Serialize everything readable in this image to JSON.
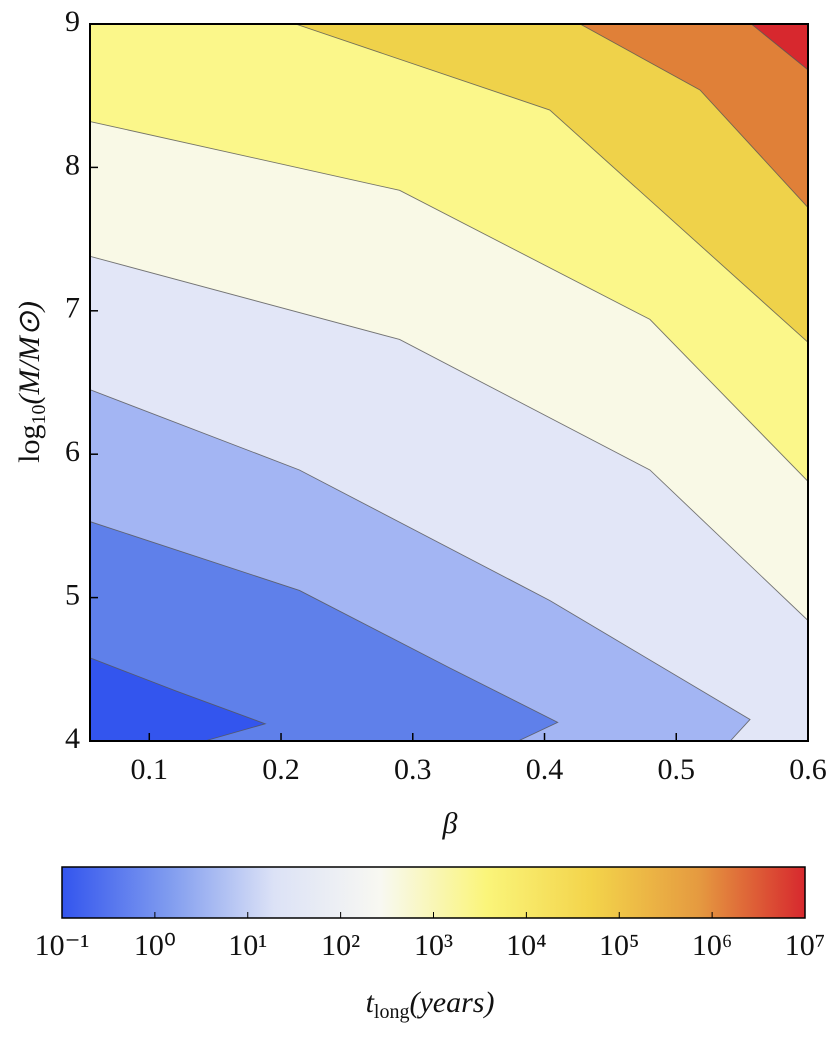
{
  "chart_data": {
    "type": "contour",
    "xlabel": "β",
    "ylabel": {
      "base": "log",
      "sub": "10",
      "rest": "(M/M⊙)"
    },
    "xlim": [
      0.055,
      0.6
    ],
    "xticks": [
      0.1,
      0.2,
      0.3,
      0.4,
      0.5,
      0.6
    ],
    "ylim": [
      4,
      9
    ],
    "yticks": [
      4,
      5,
      6,
      7,
      8,
      9
    ],
    "colors": [
      "#3355ee",
      "#5f80ea",
      "#a3b5f3",
      "#e2e6f7",
      "#f9f9e6",
      "#fbf78a",
      "#efd24a",
      "#e08038",
      "#d7282e"
    ],
    "contours": [
      {
        "level": 1,
        "x": [
          0.055,
          0.12,
          0.188,
          0.142
        ],
        "y": [
          4.58,
          4.35,
          4.12,
          4.0
        ]
      },
      {
        "level": 10,
        "x": [
          0.055,
          0.214,
          0.328,
          0.41,
          0.38
        ],
        "y": [
          5.53,
          5.05,
          4.51,
          4.13,
          4.0
        ]
      },
      {
        "level": 100,
        "x": [
          0.055,
          0.214,
          0.404,
          0.556,
          0.541
        ],
        "y": [
          6.45,
          5.89,
          4.98,
          4.15,
          4.0
        ]
      },
      {
        "level": 1000,
        "x": [
          0.055,
          0.29,
          0.48,
          0.6
        ],
        "y": [
          7.38,
          6.8,
          5.89,
          4.84
        ]
      },
      {
        "level": 10000,
        "x": [
          0.055,
          0.29,
          0.48,
          0.6
        ],
        "y": [
          8.32,
          7.84,
          6.94,
          5.81
        ]
      },
      {
        "level": 100000,
        "x": [
          0.211,
          0.404,
          0.6
        ],
        "y": [
          9,
          8.4,
          6.78
        ]
      },
      {
        "level": 1000000,
        "x": [
          0.427,
          0.518,
          0.6
        ],
        "y": [
          9,
          8.54,
          7.72
        ]
      },
      {
        "level": 10000000,
        "x": [
          0.557,
          0.6
        ],
        "y": [
          9,
          8.68
        ]
      }
    ],
    "colorbar": {
      "log_scale": true,
      "lim": [
        0.1,
        10000000
      ],
      "colors": [
        "#3355ee",
        "#7f9bef",
        "#dce2f6",
        "#f8f8f2",
        "#faf57a",
        "#f3d34a",
        "#e59a40",
        "#d7282e"
      ],
      "ticks": [
        {
          "value": 0.1,
          "label": "10⁻¹"
        },
        {
          "value": 1,
          "label": "10⁰"
        },
        {
          "value": 10,
          "label": "10¹"
        },
        {
          "value": 100,
          "label": "10²"
        },
        {
          "value": 1000,
          "label": "10³"
        },
        {
          "value": 10000,
          "label": "10⁴"
        },
        {
          "value": 100000,
          "label": "10⁵"
        },
        {
          "value": 1000000,
          "label": "10⁶"
        },
        {
          "value": 10000000,
          "label": "10⁷"
        }
      ],
      "label": {
        "base": "t",
        "sub": "long",
        "rest": "(years)"
      }
    }
  }
}
